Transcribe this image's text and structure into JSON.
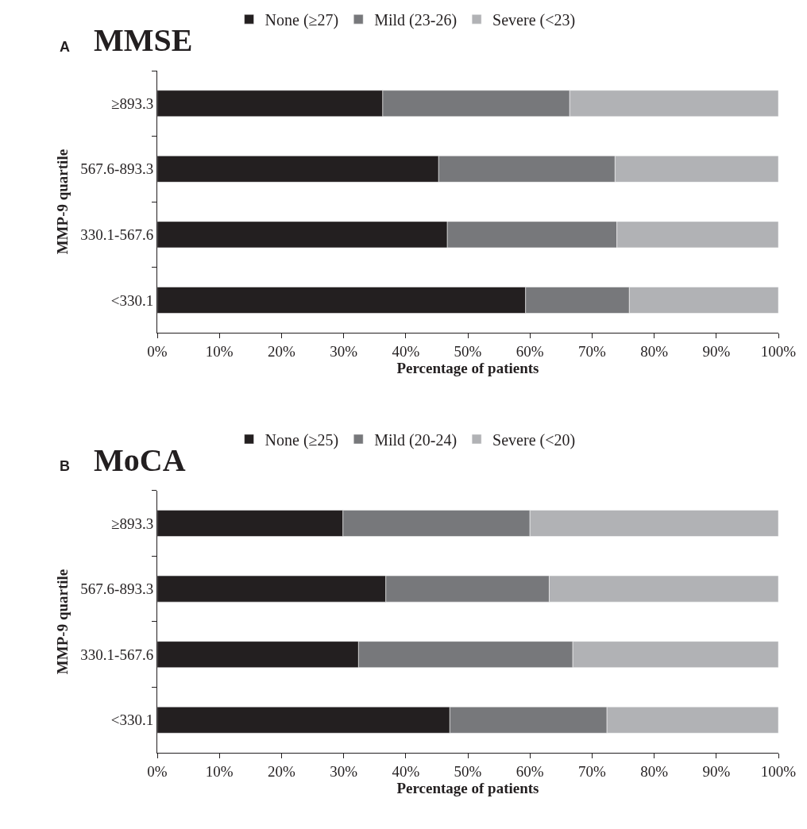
{
  "chart_data": [
    {
      "type": "bar",
      "orientation": "horizontal",
      "stacked": true,
      "title": "MMSE",
      "annotations": [
        "A"
      ],
      "xlabel": "Percentage of patients",
      "ylabel": "MMP-9 quartile",
      "legend": "top",
      "categories": [
        "≥893.3",
        "567.6-893.3",
        "330.1-567.6",
        "<330.1"
      ],
      "series": [
        {
          "name": "None (≥27)",
          "color": "#231f20",
          "values": [
            36.3,
            45.3,
            46.7,
            59.3
          ]
        },
        {
          "name": "Mild (23-26)",
          "color": "#77787b",
          "values": [
            30.1,
            28.4,
            27.3,
            16.7
          ]
        },
        {
          "name": "Severe (<23)",
          "color": "#b1b2b5",
          "values": [
            33.6,
            26.3,
            26.0,
            24.0
          ]
        }
      ],
      "xlim": [
        0,
        100
      ],
      "xticks": [
        {
          "value": 0,
          "label": "0%"
        },
        {
          "value": 10,
          "label": "10%"
        },
        {
          "value": 20,
          "label": "20%"
        },
        {
          "value": 30,
          "label": "30%"
        },
        {
          "value": 40,
          "label": "40%"
        },
        {
          "value": 50,
          "label": "50%"
        },
        {
          "value": 60,
          "label": "60%"
        },
        {
          "value": 70,
          "label": "70%"
        },
        {
          "value": 80,
          "label": "80%"
        },
        {
          "value": 90,
          "label": "90%"
        },
        {
          "value": 100,
          "label": "100%"
        }
      ]
    },
    {
      "type": "bar",
      "orientation": "horizontal",
      "stacked": true,
      "title": "MoCA",
      "annotations": [
        "B"
      ],
      "xlabel": "Percentage of patients",
      "ylabel": "MMP-9 quartile",
      "legend": "top",
      "categories": [
        "≥893.3",
        "567.6-893.3",
        "330.1-567.6",
        "<330.1"
      ],
      "series": [
        {
          "name": "None (≥25)",
          "color": "#231f20",
          "values": [
            29.9,
            36.8,
            32.4,
            47.1
          ]
        },
        {
          "name": "Mild (20-24)",
          "color": "#77787b",
          "values": [
            30.1,
            26.3,
            34.5,
            25.3
          ]
        },
        {
          "name": "Severe (<20)",
          "color": "#b1b2b5",
          "values": [
            40.0,
            36.9,
            33.1,
            27.6
          ]
        }
      ],
      "xlim": [
        0,
        100
      ],
      "xticks": [
        {
          "value": 0,
          "label": "0%"
        },
        {
          "value": 10,
          "label": "10%"
        },
        {
          "value": 20,
          "label": "20%"
        },
        {
          "value": 30,
          "label": "30%"
        },
        {
          "value": 40,
          "label": "40%"
        },
        {
          "value": 50,
          "label": "50%"
        },
        {
          "value": 60,
          "label": "60%"
        },
        {
          "value": 70,
          "label": "70%"
        },
        {
          "value": 80,
          "label": "80%"
        },
        {
          "value": 90,
          "label": "90%"
        },
        {
          "value": 100,
          "label": "100%"
        }
      ]
    }
  ]
}
